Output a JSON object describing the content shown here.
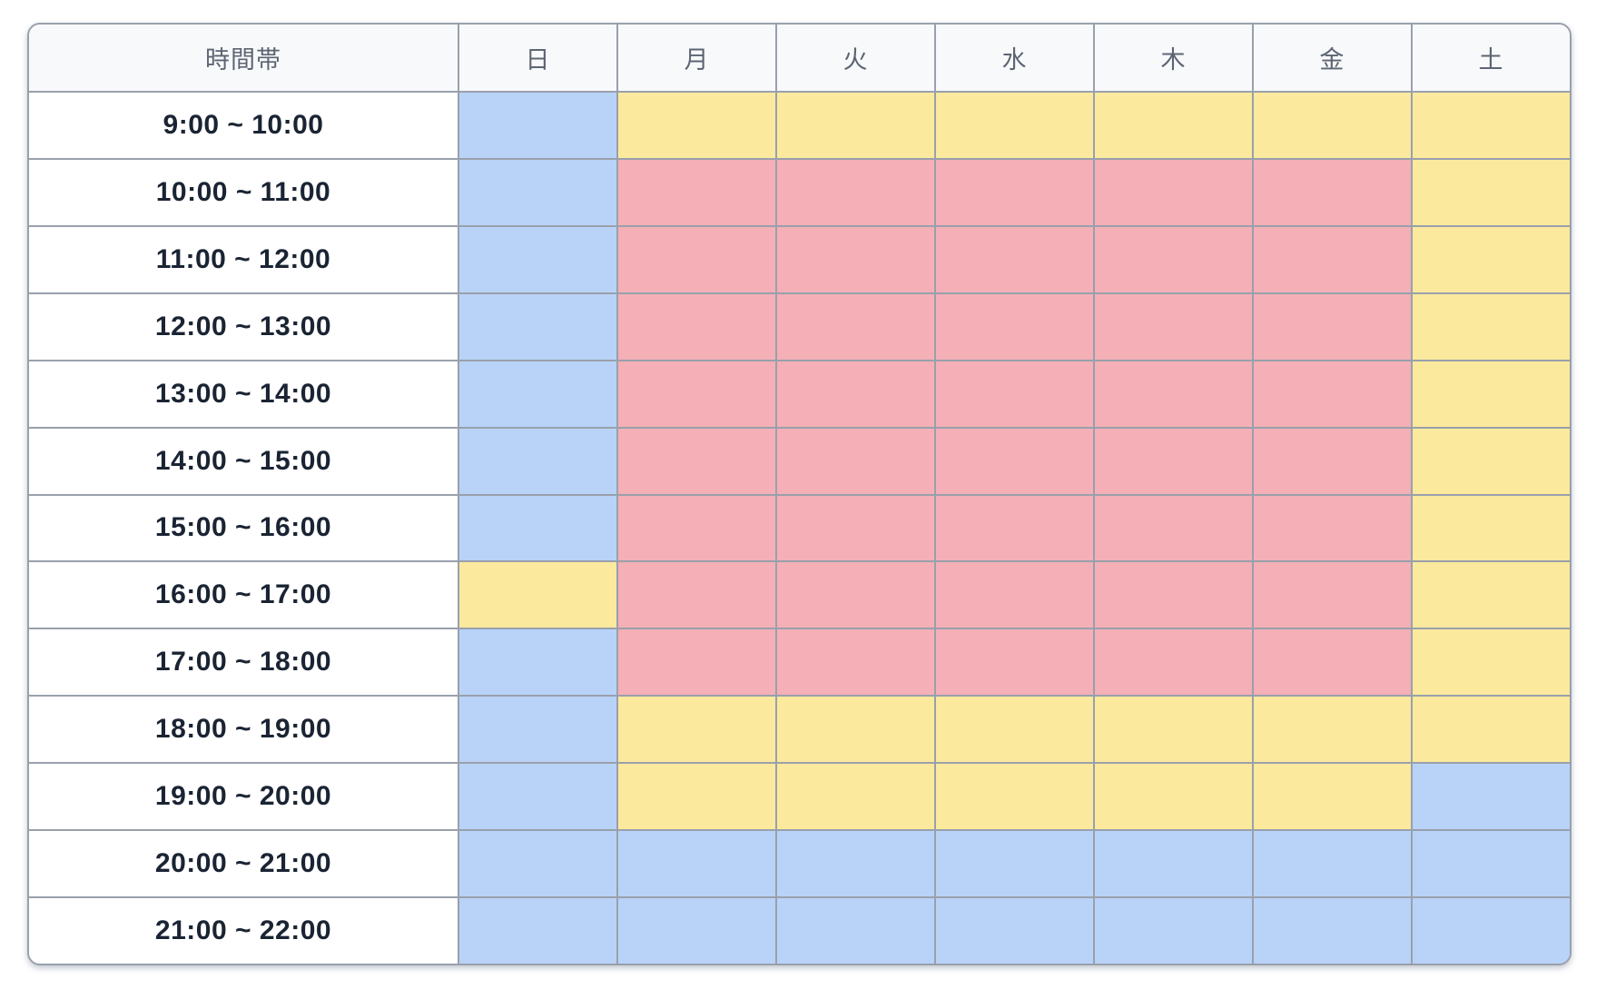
{
  "table": {
    "corner_header": "時間帯",
    "day_headers": [
      "日",
      "月",
      "火",
      "水",
      "木",
      "金",
      "土"
    ],
    "rows": [
      {
        "time": "9:00 ~ 10:00",
        "cells": [
          "blue",
          "yellow",
          "yellow",
          "yellow",
          "yellow",
          "yellow",
          "yellow"
        ]
      },
      {
        "time": "10:00 ~ 11:00",
        "cells": [
          "blue",
          "pink",
          "pink",
          "pink",
          "pink",
          "pink",
          "yellow"
        ]
      },
      {
        "time": "11:00 ~ 12:00",
        "cells": [
          "blue",
          "pink",
          "pink",
          "pink",
          "pink",
          "pink",
          "yellow"
        ]
      },
      {
        "time": "12:00 ~ 13:00",
        "cells": [
          "blue",
          "pink",
          "pink",
          "pink",
          "pink",
          "pink",
          "yellow"
        ]
      },
      {
        "time": "13:00 ~ 14:00",
        "cells": [
          "blue",
          "pink",
          "pink",
          "pink",
          "pink",
          "pink",
          "yellow"
        ]
      },
      {
        "time": "14:00 ~ 15:00",
        "cells": [
          "blue",
          "pink",
          "pink",
          "pink",
          "pink",
          "pink",
          "yellow"
        ]
      },
      {
        "time": "15:00 ~ 16:00",
        "cells": [
          "blue",
          "pink",
          "pink",
          "pink",
          "pink",
          "pink",
          "yellow"
        ]
      },
      {
        "time": "16:00 ~ 17:00",
        "cells": [
          "yellow",
          "pink",
          "pink",
          "pink",
          "pink",
          "pink",
          "yellow"
        ]
      },
      {
        "time": "17:00 ~ 18:00",
        "cells": [
          "blue",
          "pink",
          "pink",
          "pink",
          "pink",
          "pink",
          "yellow"
        ]
      },
      {
        "time": "18:00 ~ 19:00",
        "cells": [
          "blue",
          "yellow",
          "yellow",
          "yellow",
          "yellow",
          "yellow",
          "yellow"
        ]
      },
      {
        "time": "19:00 ~ 20:00",
        "cells": [
          "blue",
          "yellow",
          "yellow",
          "yellow",
          "yellow",
          "yellow",
          "blue"
        ]
      },
      {
        "time": "20:00 ~ 21:00",
        "cells": [
          "blue",
          "blue",
          "blue",
          "blue",
          "blue",
          "blue",
          "blue"
        ]
      },
      {
        "time": "21:00 ~ 22:00",
        "cells": [
          "blue",
          "blue",
          "blue",
          "blue",
          "blue",
          "blue",
          "blue"
        ]
      }
    ]
  },
  "colors": {
    "blue": "#b9d3f8",
    "yellow": "#fbe99e",
    "pink": "#f4b0b6",
    "header_bg": "#f8f9fb",
    "header_text": "#5d6573",
    "time_text": "#1a2433",
    "border": "#99a0ac"
  }
}
